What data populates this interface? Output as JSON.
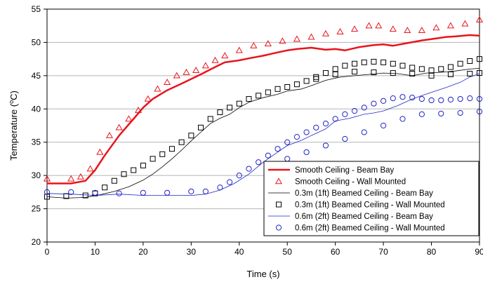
{
  "chart_data": {
    "type": "line",
    "xlabel": "Time (s)",
    "ylabel_main": "Temperature (",
    "ylabel_sup": "o",
    "ylabel_tail": "C)",
    "xlim": [
      0,
      90
    ],
    "ylim": [
      20,
      55
    ],
    "xticks": [
      0,
      10,
      20,
      30,
      40,
      50,
      60,
      70,
      80,
      90
    ],
    "yticks": [
      20,
      25,
      30,
      35,
      40,
      45,
      50,
      55
    ],
    "grid": "horizontal",
    "legend_position": "bottom-right",
    "series": [
      {
        "name": "Smooth Ceiling - Beam Bay",
        "style": "line",
        "color": "#e8141b",
        "width": 2.5,
        "points": [
          [
            0,
            28.8
          ],
          [
            5,
            28.8
          ],
          [
            8,
            29.2
          ],
          [
            10,
            30.8
          ],
          [
            12,
            33.0
          ],
          [
            15,
            36.0
          ],
          [
            18,
            38.5
          ],
          [
            20,
            40.2
          ],
          [
            22,
            41.5
          ],
          [
            25,
            42.8
          ],
          [
            28,
            43.8
          ],
          [
            30,
            44.5
          ],
          [
            32,
            45.2
          ],
          [
            35,
            46.3
          ],
          [
            37,
            47.0
          ],
          [
            40,
            47.3
          ],
          [
            42,
            47.6
          ],
          [
            45,
            48.0
          ],
          [
            48,
            48.5
          ],
          [
            50,
            48.8
          ],
          [
            52,
            49.0
          ],
          [
            55,
            49.2
          ],
          [
            58,
            48.9
          ],
          [
            60,
            49.0
          ],
          [
            62,
            48.8
          ],
          [
            65,
            49.3
          ],
          [
            68,
            49.6
          ],
          [
            70,
            49.7
          ],
          [
            72,
            49.5
          ],
          [
            75,
            49.9
          ],
          [
            78,
            50.3
          ],
          [
            80,
            50.5
          ],
          [
            83,
            50.8
          ],
          [
            85,
            50.9
          ],
          [
            88,
            51.1
          ],
          [
            90,
            51.0
          ]
        ]
      },
      {
        "name": "Smooth Ceiling - Wall Mounted",
        "style": "marker",
        "marker": "triangle",
        "color": "#e8141b",
        "points": [
          [
            0,
            29.5
          ],
          [
            5,
            29.5
          ],
          [
            7,
            29.8
          ],
          [
            9,
            31.0
          ],
          [
            11,
            33.5
          ],
          [
            13,
            36.0
          ],
          [
            15,
            37.2
          ],
          [
            17,
            38.5
          ],
          [
            19,
            39.8
          ],
          [
            21,
            41.5
          ],
          [
            23,
            43.0
          ],
          [
            25,
            44.0
          ],
          [
            27,
            45.0
          ],
          [
            29,
            45.5
          ],
          [
            31,
            45.8
          ],
          [
            33,
            46.5
          ],
          [
            35,
            47.3
          ],
          [
            37,
            48.0
          ],
          [
            40,
            48.8
          ],
          [
            43,
            49.5
          ],
          [
            46,
            49.8
          ],
          [
            49,
            50.2
          ],
          [
            52,
            50.5
          ],
          [
            55,
            50.8
          ],
          [
            58,
            51.3
          ],
          [
            61,
            51.6
          ],
          [
            64,
            52.0
          ],
          [
            67,
            52.5
          ],
          [
            69,
            52.5
          ],
          [
            72,
            52.0
          ],
          [
            75,
            51.8
          ],
          [
            78,
            51.8
          ],
          [
            81,
            52.2
          ],
          [
            84,
            52.5
          ],
          [
            87,
            52.8
          ],
          [
            90,
            53.4
          ]
        ]
      },
      {
        "name": "0.3m (1ft) Beamed Ceiling - Beam Bay",
        "style": "line",
        "color": "#000000",
        "width": 0.8,
        "points": [
          [
            0,
            26.8
          ],
          [
            4,
            26.6
          ],
          [
            8,
            26.7
          ],
          [
            11,
            27.1
          ],
          [
            14,
            27.6
          ],
          [
            17,
            28.3
          ],
          [
            20,
            29.3
          ],
          [
            22,
            30.2
          ],
          [
            24,
            31.3
          ],
          [
            26,
            32.5
          ],
          [
            28,
            33.8
          ],
          [
            30,
            35.2
          ],
          [
            32,
            36.5
          ],
          [
            34,
            37.8
          ],
          [
            36,
            38.6
          ],
          [
            38,
            39.2
          ],
          [
            40,
            40.2
          ],
          [
            42,
            41.0
          ],
          [
            45,
            41.7
          ],
          [
            48,
            42.2
          ],
          [
            50,
            42.7
          ],
          [
            53,
            43.0
          ],
          [
            55,
            43.5
          ],
          [
            58,
            44.3
          ],
          [
            61,
            44.8
          ],
          [
            64,
            45.0
          ],
          [
            67,
            45.2
          ],
          [
            70,
            45.4
          ],
          [
            73,
            45.3
          ],
          [
            76,
            45.0
          ],
          [
            79,
            45.4
          ],
          [
            82,
            45.5
          ],
          [
            85,
            45.7
          ],
          [
            88,
            46.0
          ],
          [
            90,
            46.1
          ]
        ]
      },
      {
        "name": "0.3m (1ft) Beamed Ceiling - Wall Mounted",
        "style": "marker",
        "marker": "square",
        "color": "#000000",
        "points": [
          [
            0,
            26.8
          ],
          [
            4,
            26.9
          ],
          [
            8,
            27.0
          ],
          [
            10,
            27.3
          ],
          [
            12,
            28.2
          ],
          [
            14,
            29.2
          ],
          [
            16,
            30.2
          ],
          [
            18,
            30.8
          ],
          [
            20,
            31.5
          ],
          [
            22,
            32.5
          ],
          [
            24,
            33.2
          ],
          [
            26,
            34.0
          ],
          [
            28,
            35.0
          ],
          [
            30,
            36.0
          ],
          [
            32,
            37.2
          ],
          [
            34,
            38.5
          ],
          [
            36,
            39.5
          ],
          [
            38,
            40.2
          ],
          [
            40,
            40.8
          ],
          [
            42,
            41.5
          ],
          [
            44,
            42.0
          ],
          [
            46,
            42.5
          ],
          [
            48,
            43.0
          ],
          [
            50,
            43.3
          ],
          [
            52,
            43.7
          ],
          [
            54,
            44.2
          ],
          [
            56,
            44.8
          ],
          [
            58,
            45.4
          ],
          [
            60,
            46.0
          ],
          [
            62,
            46.5
          ],
          [
            64,
            46.8
          ],
          [
            66,
            47.0
          ],
          [
            68,
            47.1
          ],
          [
            70,
            47.0
          ],
          [
            72,
            46.8
          ],
          [
            74,
            46.5
          ],
          [
            76,
            46.2
          ],
          [
            78,
            46.0
          ],
          [
            80,
            45.8
          ],
          [
            82,
            46.0
          ],
          [
            84,
            46.3
          ],
          [
            86,
            46.8
          ],
          [
            88,
            47.2
          ],
          [
            90,
            47.5
          ],
          [
            56,
            44.5
          ],
          [
            60,
            45.2
          ],
          [
            64,
            45.6
          ],
          [
            68,
            45.5
          ],
          [
            72,
            45.4
          ],
          [
            76,
            45.3
          ],
          [
            80,
            45.0
          ],
          [
            84,
            45.2
          ],
          [
            88,
            45.3
          ],
          [
            90,
            45.4
          ]
        ]
      },
      {
        "name": "0.6m (2ft) Beamed Ceiling - Beam Bay",
        "style": "line",
        "color": "#1f23c6",
        "width": 0.8,
        "points": [
          [
            0,
            27.3
          ],
          [
            5,
            27.2
          ],
          [
            10,
            27.0
          ],
          [
            15,
            27.2
          ],
          [
            20,
            27.0
          ],
          [
            25,
            27.0
          ],
          [
            30,
            27.0
          ],
          [
            33,
            27.2
          ],
          [
            36,
            27.8
          ],
          [
            39,
            28.8
          ],
          [
            42,
            30.2
          ],
          [
            45,
            32.0
          ],
          [
            48,
            33.5
          ],
          [
            50,
            34.5
          ],
          [
            53,
            35.3
          ],
          [
            55,
            36.0
          ],
          [
            58,
            37.0
          ],
          [
            60,
            38.2
          ],
          [
            63,
            38.6
          ],
          [
            66,
            39.2
          ],
          [
            68,
            39.4
          ],
          [
            70,
            39.7
          ],
          [
            73,
            40.5
          ],
          [
            76,
            41.5
          ],
          [
            78,
            42.0
          ],
          [
            80,
            42.5
          ],
          [
            83,
            43.2
          ],
          [
            86,
            44.0
          ],
          [
            88,
            44.8
          ],
          [
            90,
            45.3
          ]
        ]
      },
      {
        "name": "0.6m (2ft) Beamed Ceiling - Wall Mounted",
        "style": "marker",
        "marker": "circle",
        "color": "#1f23c6",
        "points": [
          [
            0,
            27.5
          ],
          [
            5,
            27.5
          ],
          [
            10,
            27.4
          ],
          [
            15,
            27.3
          ],
          [
            20,
            27.4
          ],
          [
            25,
            27.4
          ],
          [
            30,
            27.6
          ],
          [
            33,
            27.6
          ],
          [
            36,
            28.2
          ],
          [
            38,
            29.0
          ],
          [
            40,
            30.0
          ],
          [
            42,
            31.0
          ],
          [
            44,
            32.0
          ],
          [
            46,
            33.0
          ],
          [
            48,
            34.0
          ],
          [
            50,
            35.0
          ],
          [
            52,
            35.8
          ],
          [
            54,
            36.5
          ],
          [
            56,
            37.2
          ],
          [
            58,
            37.8
          ],
          [
            60,
            38.5
          ],
          [
            62,
            39.2
          ],
          [
            64,
            39.7
          ],
          [
            66,
            40.2
          ],
          [
            68,
            40.8
          ],
          [
            70,
            41.2
          ],
          [
            72,
            41.6
          ],
          [
            74,
            41.8
          ],
          [
            76,
            41.7
          ],
          [
            78,
            41.5
          ],
          [
            80,
            41.3
          ],
          [
            82,
            41.3
          ],
          [
            84,
            41.4
          ],
          [
            86,
            41.5
          ],
          [
            88,
            41.6
          ],
          [
            90,
            41.5
          ],
          [
            50,
            32.5
          ],
          [
            54,
            33.5
          ],
          [
            58,
            34.5
          ],
          [
            62,
            35.5
          ],
          [
            66,
            36.5
          ],
          [
            70,
            37.5
          ],
          [
            74,
            38.5
          ],
          [
            78,
            39.2
          ],
          [
            82,
            39.3
          ],
          [
            86,
            39.4
          ],
          [
            90,
            39.6
          ]
        ]
      }
    ]
  }
}
